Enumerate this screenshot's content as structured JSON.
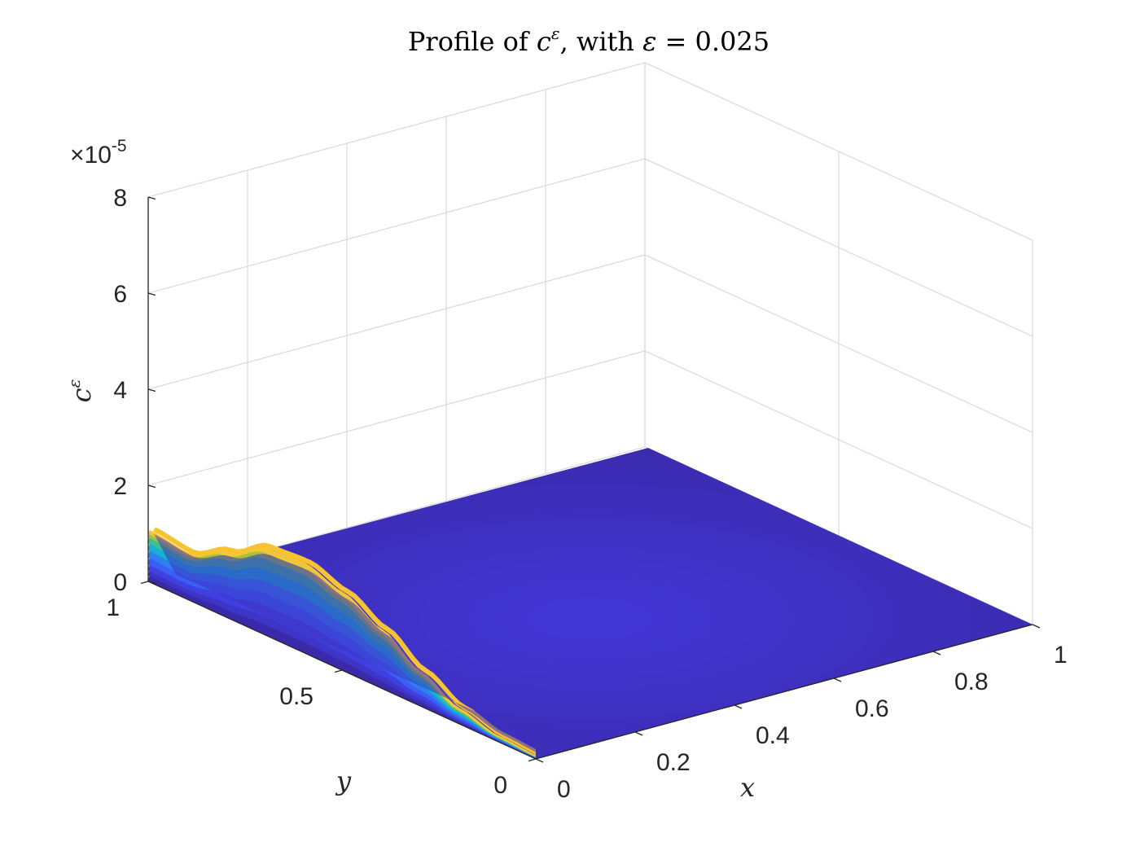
{
  "chart_data": {
    "type": "surface",
    "title": {
      "prefix": "Profile of ",
      "symbol": "c",
      "symbol_sup": "ε",
      "suffix": ", with ",
      "param": "ε",
      "equals": " = 0.025"
    },
    "xlabel": "x",
    "ylabel": "y",
    "zlabel": {
      "symbol": "c",
      "sup": "ε"
    },
    "exponent_label": {
      "times": "×",
      "base": "10",
      "power": "-5"
    },
    "xlim": [
      0,
      1
    ],
    "ylim": [
      0,
      1
    ],
    "zlim": [
      0,
      8
    ],
    "z_scale": "1e-5",
    "x_ticks": [
      "0",
      "0.2",
      "0.4",
      "0.6",
      "0.8",
      "1"
    ],
    "y_ticks": [
      "0",
      "0.5",
      "1"
    ],
    "z_ticks": [
      "0",
      "2",
      "4",
      "6",
      "8"
    ],
    "grid": true,
    "colormap": "parula",
    "x_edge_profile": {
      "description": "surface values along x = 0 as a function of y",
      "y": [
        0,
        0.1,
        0.2,
        0.3,
        0.4,
        0.5,
        0.6,
        0.7,
        0.8,
        0.9,
        1.0
      ],
      "z": [
        0.05,
        0.1,
        0.3,
        0.7,
        1.2,
        1.6,
        1.85,
        1.8,
        1.35,
        0.95,
        1.05
      ]
    },
    "x_decay_length": 0.025,
    "interior_value": 0
  }
}
